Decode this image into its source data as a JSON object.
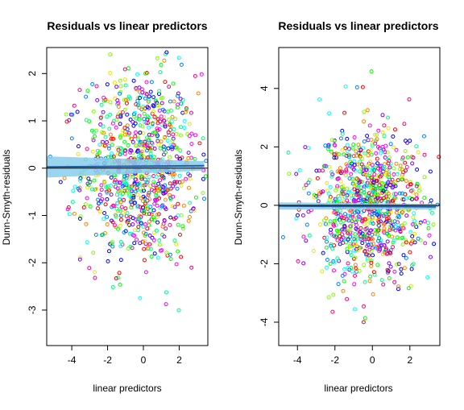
{
  "chart_data": [
    {
      "type": "scatter",
      "title": "Residuals vs linear predictors",
      "xlabel": "linear predictors",
      "ylabel": "Dunn-Smyth-residuals",
      "xlim": [
        -5.4,
        3.6
      ],
      "ylim": [
        -3.75,
        2.55
      ],
      "xticks": [
        -4,
        -2,
        0,
        2
      ],
      "yticks": [
        -3,
        -2,
        -1,
        0,
        1,
        2
      ],
      "reference_line_y": 0,
      "trend_band": {
        "x": [
          -5.4,
          3.4
        ],
        "lower": [
          -0.2,
          -0.05
        ],
        "upper": [
          0.25,
          0.15
        ]
      },
      "cloud": {
        "center_x": -0.2,
        "x_spread": 1.6,
        "y_spread": 1.0,
        "count": 1000
      },
      "point_colors": [
        "#ff0000",
        "#ff8000",
        "#e6e600",
        "#80ff00",
        "#00ff00",
        "#00ff80",
        "#00ffff",
        "#0080ff",
        "#0000ff",
        "#8000ff",
        "#ff00ff",
        "#ff0080"
      ],
      "band_color": "#87ceeb"
    },
    {
      "type": "scatter",
      "title": "Residuals vs linear predictors",
      "xlabel": "linear predictors",
      "ylabel": "Dunn-Smyth-residuals",
      "xlim": [
        -5.0,
        3.6
      ],
      "ylim": [
        -4.8,
        5.4
      ],
      "xticks": [
        -4,
        -2,
        0,
        2
      ],
      "yticks": [
        -4,
        -2,
        0,
        2,
        4
      ],
      "reference_line_y": 0,
      "trend_band": {
        "x": [
          -5.0,
          3.4
        ],
        "lower": [
          -0.15,
          -0.15
        ],
        "upper": [
          0.1,
          0.05
        ]
      },
      "cloud": {
        "center_x": -0.3,
        "x_spread": 1.5,
        "y_spread": 1.3,
        "count": 1000
      },
      "point_colors": [
        "#ff0000",
        "#ff8000",
        "#e6e600",
        "#80ff00",
        "#00ff00",
        "#00ff80",
        "#00ffff",
        "#0080ff",
        "#0000ff",
        "#8000ff",
        "#ff00ff",
        "#ff0080"
      ],
      "band_color": "#87ceeb"
    }
  ]
}
